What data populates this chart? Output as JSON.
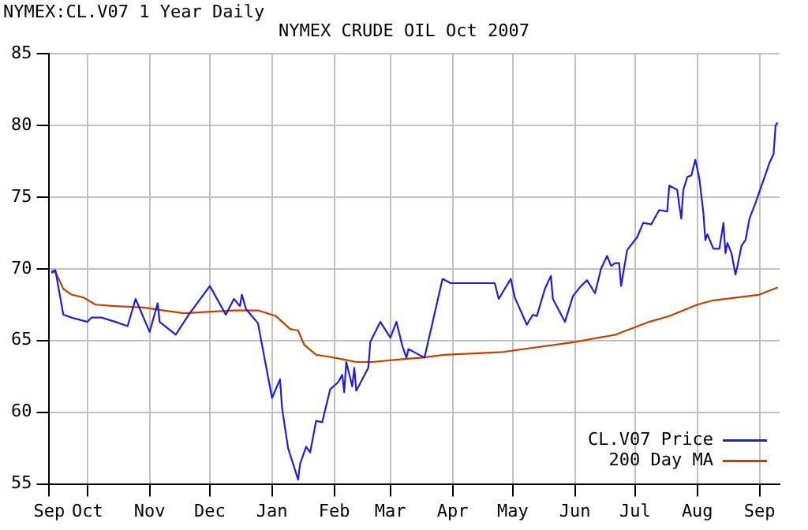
{
  "chart_data": {
    "type": "line",
    "title": "NYMEX CRUDE OIL Oct 2007",
    "subtitle": "NYMEX:CL.V07 1 Year Daily",
    "xlim": [
      "2006-09-12",
      "2007-09-11"
    ],
    "xticks": [
      {
        "value": "2006-09-12",
        "label": "Sep"
      },
      {
        "value": "2006-10-01",
        "label": "Oct"
      },
      {
        "value": "2006-11-01",
        "label": "Nov"
      },
      {
        "value": "2006-12-01",
        "label": "Dec"
      },
      {
        "value": "2007-01-01",
        "label": "Jan"
      },
      {
        "value": "2007-02-01",
        "label": "Feb"
      },
      {
        "value": "2007-03-01",
        "label": "Mar"
      },
      {
        "value": "2007-04-01",
        "label": "Apr"
      },
      {
        "value": "2007-05-01",
        "label": "May"
      },
      {
        "value": "2007-06-01",
        "label": "Jun"
      },
      {
        "value": "2007-07-01",
        "label": "Jul"
      },
      {
        "value": "2007-08-01",
        "label": "Aug"
      },
      {
        "value": "2007-09-01",
        "label": "Sep"
      }
    ],
    "ylim": [
      55,
      85
    ],
    "yticks": [
      55,
      60,
      65,
      70,
      75,
      80,
      85
    ],
    "grid": true,
    "legend": "bottom right",
    "marker": "none",
    "line_style": "solid",
    "series": [
      {
        "name": "CL.V07 Price",
        "color": "#2020d0",
        "x": [
          "2006-09-13",
          "2006-09-15",
          "2006-09-19",
          "2006-09-23",
          "2006-10-01",
          "2006-10-03",
          "2006-10-08",
          "2006-10-15",
          "2006-10-21",
          "2006-10-25",
          "2006-11-01",
          "2006-11-05",
          "2006-11-06",
          "2006-11-14",
          "2006-11-21",
          "2006-12-01",
          "2006-12-09",
          "2006-12-13",
          "2006-12-16",
          "2006-12-17",
          "2006-12-19",
          "2006-12-25",
          "2007-01-01",
          "2007-01-05",
          "2007-01-06",
          "2007-01-09",
          "2007-01-14",
          "2007-01-15",
          "2007-01-18",
          "2007-01-20",
          "2007-01-23",
          "2007-01-26",
          "2007-01-30",
          "2007-02-03",
          "2007-02-05",
          "2007-02-06",
          "2007-02-07",
          "2007-02-10",
          "2007-02-11",
          "2007-02-12",
          "2007-02-18",
          "2007-02-19",
          "2007-02-24",
          "2007-03-01",
          "2007-03-04",
          "2007-03-07",
          "2007-03-09",
          "2007-03-10",
          "2007-03-18",
          "2007-03-27",
          "2007-03-31",
          "2007-04-22",
          "2007-04-24",
          "2007-04-30",
          "2007-05-02",
          "2007-05-08",
          "2007-05-11",
          "2007-05-13",
          "2007-05-17",
          "2007-05-20",
          "2007-05-21",
          "2007-05-27",
          "2007-05-31",
          "2007-06-04",
          "2007-06-07",
          "2007-06-11",
          "2007-06-14",
          "2007-06-17",
          "2007-06-19",
          "2007-06-21",
          "2007-06-23",
          "2007-06-24",
          "2007-06-27",
          "2007-07-02",
          "2007-07-05",
          "2007-07-09",
          "2007-07-13",
          "2007-07-17",
          "2007-07-18",
          "2007-07-22",
          "2007-07-23",
          "2007-07-24",
          "2007-07-25",
          "2007-07-27",
          "2007-07-29",
          "2007-07-31",
          "2007-08-02",
          "2007-08-04",
          "2007-08-05",
          "2007-08-06",
          "2007-08-09",
          "2007-08-12",
          "2007-08-14",
          "2007-08-15",
          "2007-08-16",
          "2007-08-18",
          "2007-08-20",
          "2007-08-21",
          "2007-08-23",
          "2007-08-25",
          "2007-08-27",
          "2007-08-30",
          "2007-09-02",
          "2007-09-04",
          "2007-09-06",
          "2007-09-08",
          "2007-09-09",
          "2007-09-10"
        ],
        "values": [
          69.8,
          69.9,
          66.8,
          66.6,
          66.3,
          66.6,
          66.6,
          66.3,
          66.0,
          67.9,
          65.6,
          67.6,
          66.3,
          65.4,
          66.9,
          68.8,
          66.8,
          67.9,
          67.4,
          68.2,
          67.2,
          66.2,
          61.0,
          62.3,
          60.3,
          57.5,
          55.3,
          56.4,
          57.6,
          57.2,
          59.4,
          59.3,
          61.6,
          62.1,
          62.6,
          61.4,
          63.5,
          61.8,
          63.1,
          61.5,
          63.1,
          64.9,
          66.3,
          65.2,
          66.3,
          64.6,
          63.8,
          64.4,
          63.8,
          69.3,
          69.0,
          69.0,
          67.9,
          69.3,
          68.0,
          66.1,
          66.8,
          66.7,
          68.6,
          69.5,
          67.9,
          66.3,
          68.1,
          68.8,
          69.2,
          68.3,
          70.0,
          70.9,
          70.2,
          70.4,
          70.4,
          68.8,
          71.3,
          72.2,
          73.2,
          73.1,
          74.1,
          74.0,
          75.8,
          75.5,
          74.4,
          73.5,
          75.5,
          76.4,
          76.5,
          77.6,
          76.3,
          73.9,
          72.0,
          72.4,
          71.4,
          71.4,
          73.2,
          71.1,
          71.8,
          71.1,
          69.6,
          70.2,
          71.6,
          72.0,
          73.5,
          74.6,
          75.8,
          76.6,
          77.4,
          78.0,
          80.0,
          80.2
        ]
      },
      {
        "name": "200 Day MA",
        "color": "#c04000",
        "x": [
          "2006-09-13",
          "2006-09-15",
          "2006-09-19",
          "2006-09-23",
          "2006-09-29",
          "2006-10-05",
          "2006-10-15",
          "2006-10-29",
          "2006-11-08",
          "2006-11-18",
          "2006-12-13",
          "2006-12-25",
          "2007-01-03",
          "2007-01-10",
          "2007-01-14",
          "2007-01-17",
          "2007-01-23",
          "2007-01-28",
          "2007-02-05",
          "2007-02-12",
          "2007-02-20",
          "2007-03-07",
          "2007-03-16",
          "2007-03-28",
          "2007-04-26",
          "2007-06-01",
          "2007-06-21",
          "2007-07-08",
          "2007-07-18",
          "2007-08-01",
          "2007-08-09",
          "2007-08-21",
          "2007-09-01",
          "2007-09-10"
        ],
        "values": [
          69.7,
          69.8,
          68.6,
          68.2,
          68.0,
          67.5,
          67.4,
          67.3,
          67.1,
          66.9,
          67.1,
          67.1,
          66.7,
          65.8,
          65.7,
          64.7,
          64.0,
          63.9,
          63.7,
          63.5,
          63.5,
          63.7,
          63.8,
          64.0,
          64.2,
          64.9,
          65.4,
          66.3,
          66.7,
          67.5,
          67.8,
          68.0,
          68.2,
          68.7
        ]
      }
    ]
  }
}
